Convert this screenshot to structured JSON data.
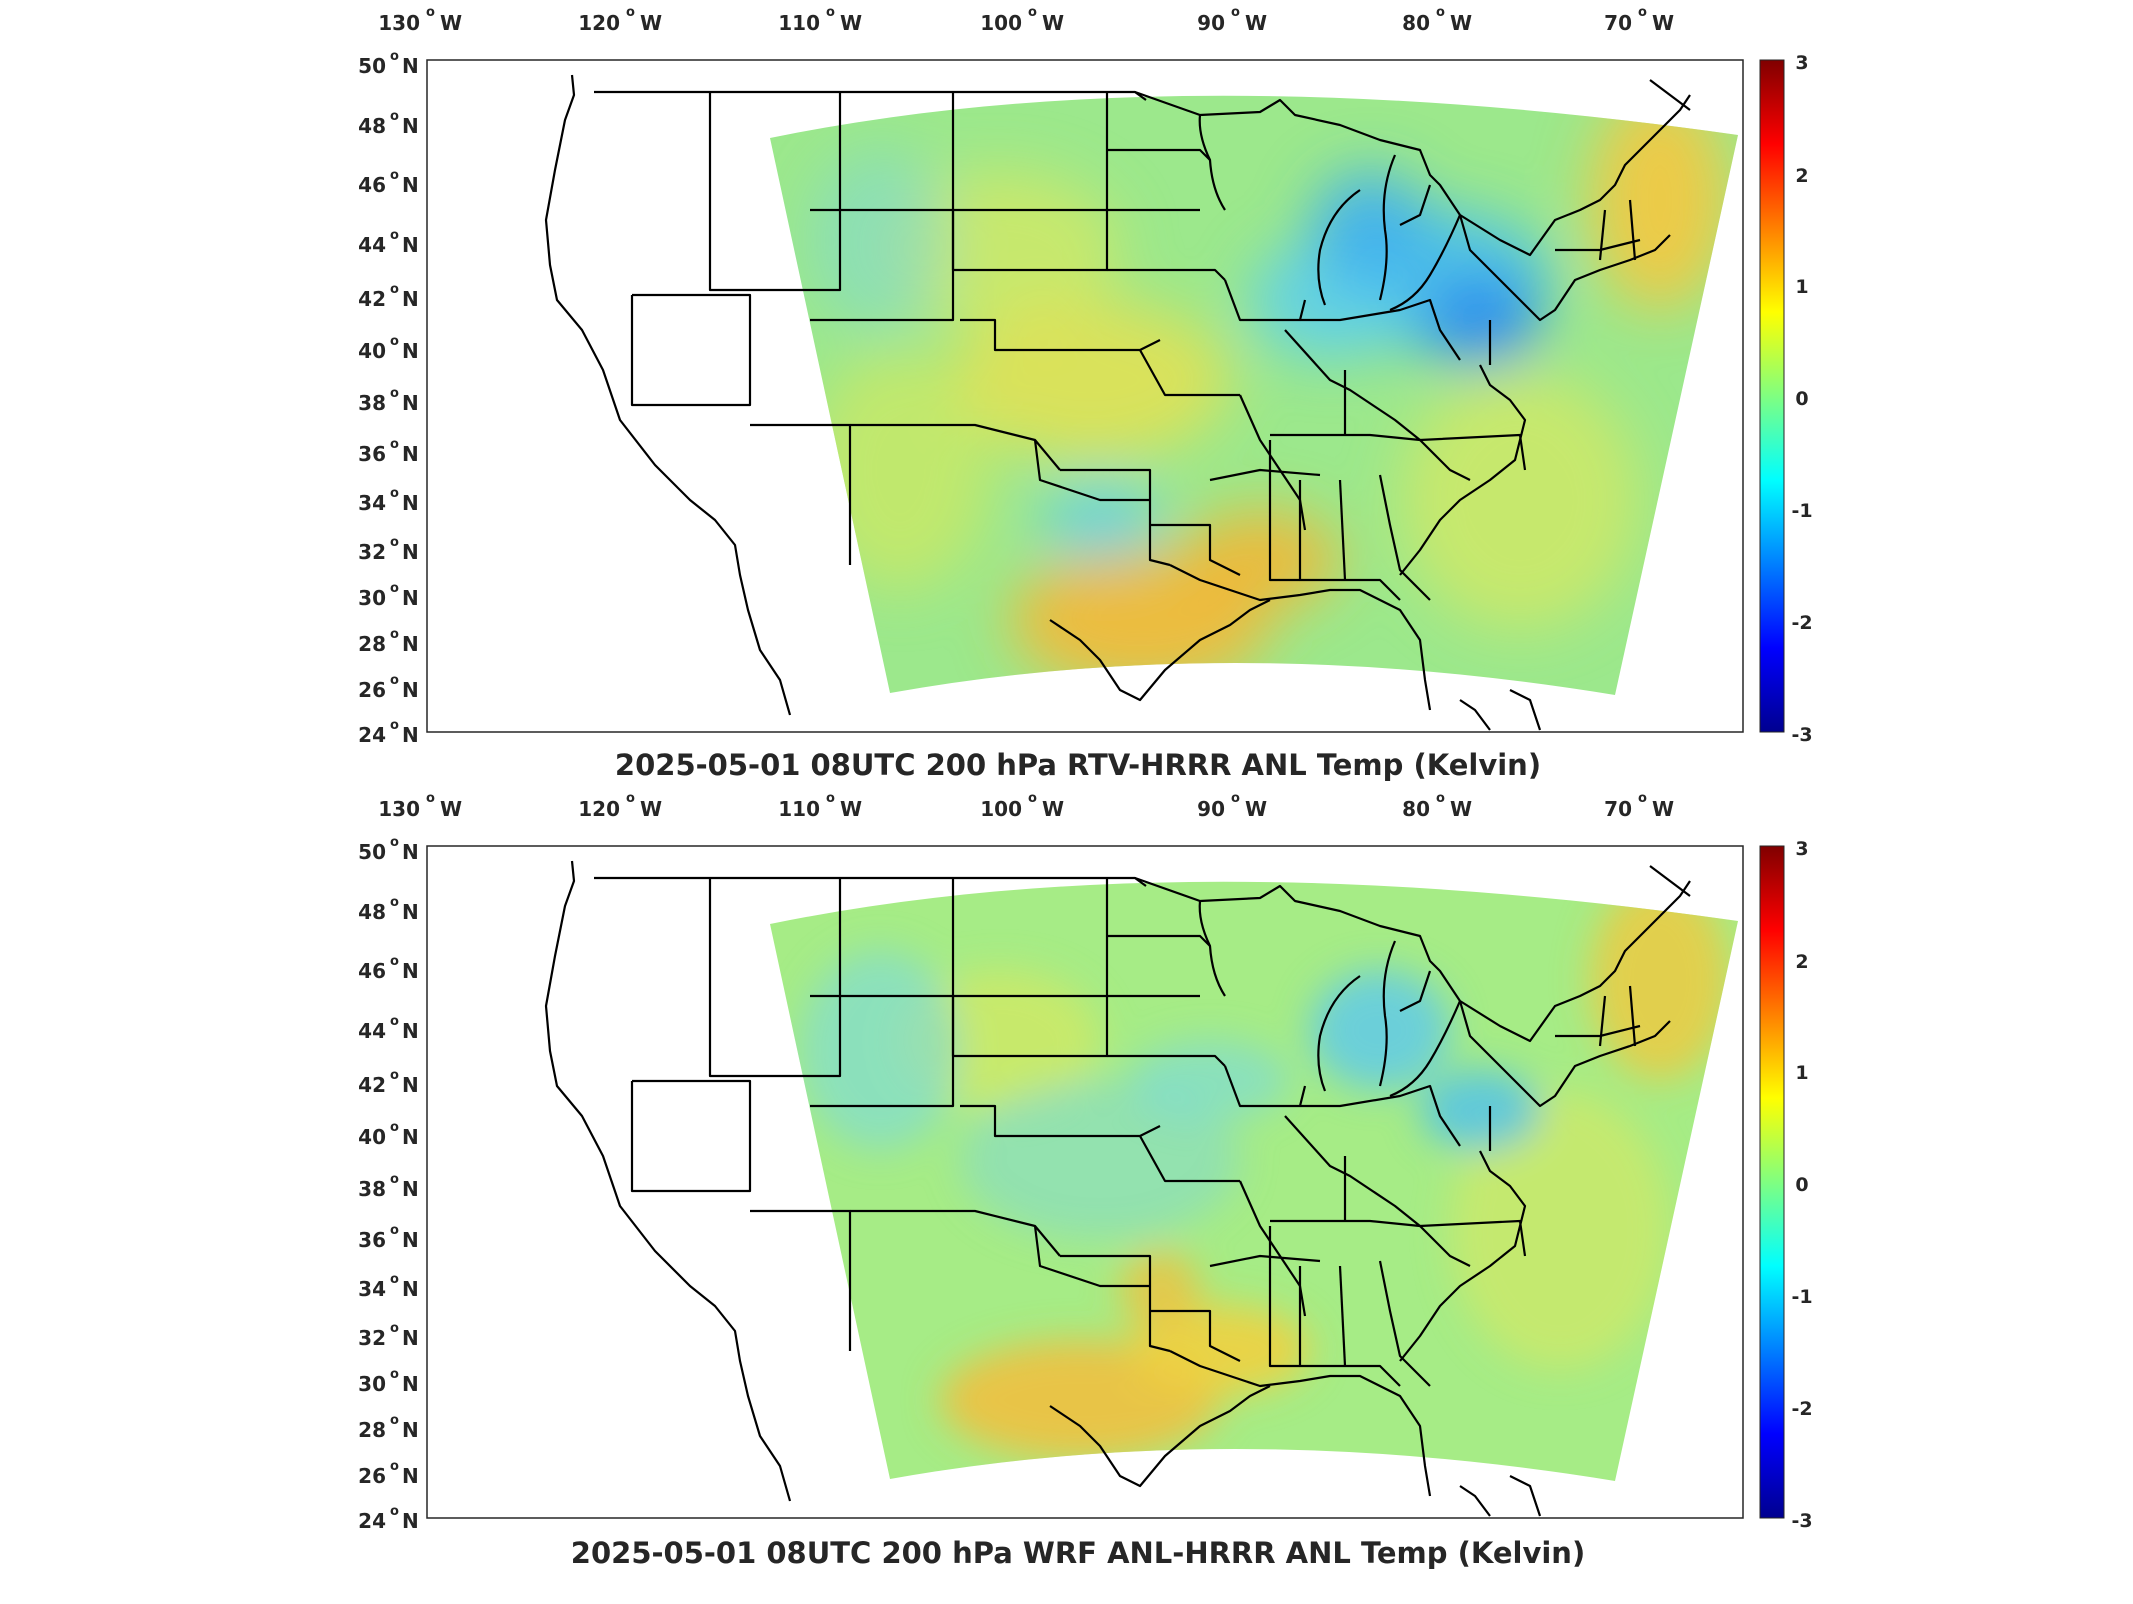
{
  "panels": [
    {
      "id": "top",
      "title": "2025-05-01 08UTC 200 hPa RTV-HRRR ANL Temp (Kelvin)",
      "lon_ticks": [
        "130",
        "120",
        "110",
        "100",
        "90",
        "80",
        "70"
      ],
      "lon_hemisphere": "W",
      "lat_ticks": [
        "50",
        "48",
        "46",
        "44",
        "42",
        "40",
        "38",
        "36",
        "34",
        "32",
        "30",
        "28",
        "26",
        "24"
      ],
      "lat_hemisphere": "N",
      "colorbar": {
        "ticks": [
          "3",
          "2",
          "1",
          "0",
          "-1",
          "-2",
          "-3"
        ],
        "min": -3,
        "max": 3,
        "colormap": "jet"
      }
    },
    {
      "id": "bottom",
      "title": "2025-05-01 08UTC 200 hPa WRF ANL-HRRR ANL Temp (Kelvin)",
      "lon_ticks": [
        "130",
        "120",
        "110",
        "100",
        "90",
        "80",
        "70"
      ],
      "lon_hemisphere": "W",
      "lat_ticks": [
        "50",
        "48",
        "46",
        "44",
        "42",
        "40",
        "38",
        "36",
        "34",
        "32",
        "30",
        "28",
        "26",
        "24"
      ],
      "lat_hemisphere": "N",
      "colorbar": {
        "ticks": [
          "3",
          "2",
          "1",
          "0",
          "-1",
          "-2",
          "-3"
        ],
        "min": -3,
        "max": 3,
        "colormap": "jet"
      }
    }
  ],
  "colors": {
    "field_base": "#8ee88a",
    "warm": "#f6d23a",
    "hot": "#f08a28",
    "cool": "#52cfe6",
    "cold": "#2a8ff0",
    "border": "#000000"
  }
}
